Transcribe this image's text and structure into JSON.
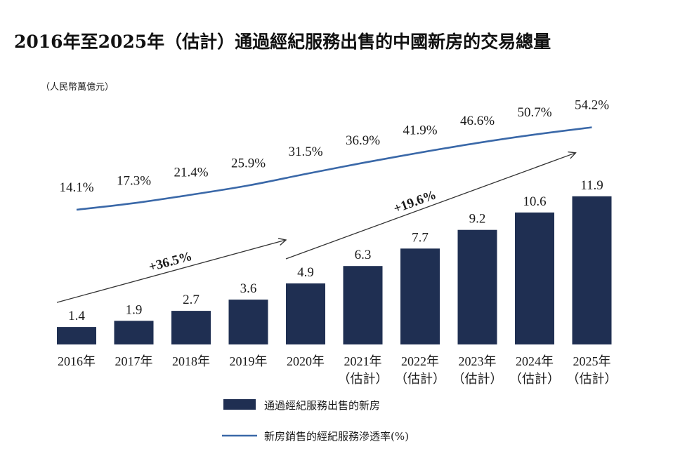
{
  "chart_data": {
    "type": "bar",
    "title": "2016年至2025年（估計）通過經紀服務出售的中國新房的交易總量",
    "unit_label": "（人民幣萬億元）",
    "categories": [
      [
        "2016年"
      ],
      [
        "2017年"
      ],
      [
        "2018年"
      ],
      [
        "2019年"
      ],
      [
        "2020年"
      ],
      [
        "2021年",
        "（估計）"
      ],
      [
        "2022年",
        "（估計）"
      ],
      [
        "2023年",
        "（估計）"
      ],
      [
        "2024年",
        "（估計）"
      ],
      [
        "2025年",
        "（估計）"
      ]
    ],
    "series": [
      {
        "name": "通過經紀服務出售的新房",
        "type": "bar",
        "color": "#1f2f52",
        "values": [
          1.4,
          1.9,
          2.7,
          3.6,
          4.9,
          6.3,
          7.7,
          9.2,
          10.6,
          11.9
        ],
        "labels": [
          "1.4",
          "1.9",
          "2.7",
          "3.6",
          "4.9",
          "6.3",
          "7.7",
          "9.2",
          "10.6",
          "11.9"
        ]
      },
      {
        "name": "新房銷售的經紀服務滲透率(%)",
        "type": "line",
        "color": "#3a68a8",
        "values": [
          14.1,
          17.3,
          21.4,
          25.9,
          31.5,
          36.9,
          41.9,
          46.6,
          50.7,
          54.2
        ],
        "labels": [
          "14.1%",
          "17.3%",
          "21.4%",
          "25.9%",
          "31.5%",
          "36.9%",
          "41.9%",
          "46.6%",
          "50.7%",
          "54.2%"
        ]
      }
    ],
    "annotations": [
      {
        "text": "+36.5%",
        "from_category": 0,
        "to_category": 4
      },
      {
        "text": "+19.6%",
        "from_category": 4,
        "to_category": 9
      }
    ],
    "legend_position": "bottom-center"
  }
}
